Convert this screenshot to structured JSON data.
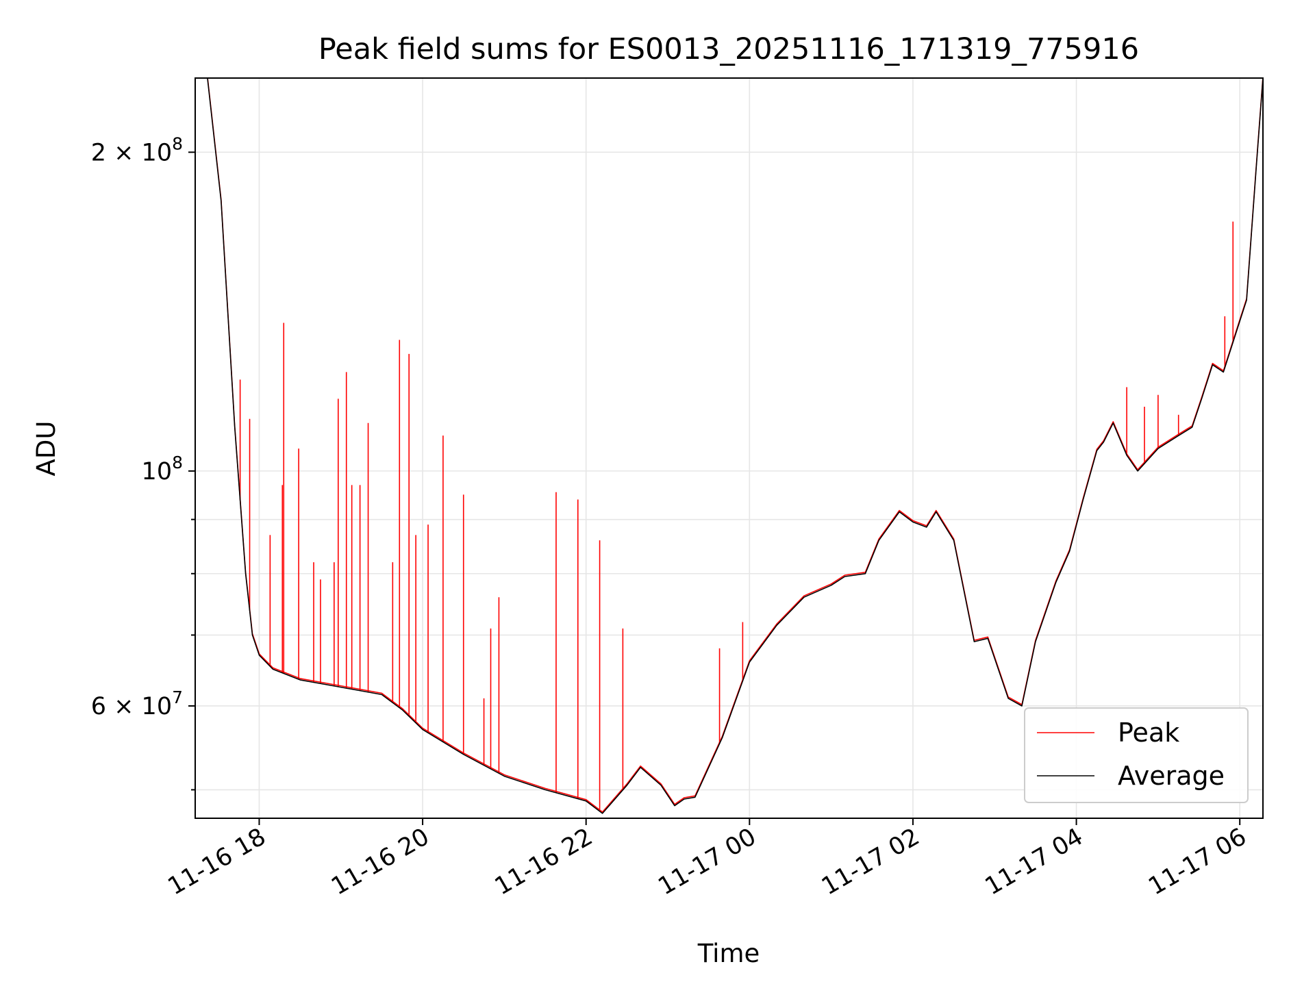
{
  "chart_data": {
    "type": "line",
    "title": "Peak field sums for ES0013_20251116_171319_775916",
    "xlabel": "Time",
    "ylabel": "ADU",
    "yscale": "log",
    "grid": true,
    "ylim": [
      47000000,
      235000000
    ],
    "xlim": [
      "2025-11-16 17:13",
      "2025-11-17 06:17"
    ],
    "x_ticks": [
      {
        "value": "2025-11-16 18:00",
        "label": "11-16 18"
      },
      {
        "value": "2025-11-16 20:00",
        "label": "11-16 20"
      },
      {
        "value": "2025-11-16 22:00",
        "label": "11-16 22"
      },
      {
        "value": "2025-11-17 00:00",
        "label": "11-17 00"
      },
      {
        "value": "2025-11-17 02:00",
        "label": "11-17 02"
      },
      {
        "value": "2025-11-17 04:00",
        "label": "11-17 04"
      },
      {
        "value": "2025-11-17 06:00",
        "label": "11-17 06"
      }
    ],
    "y_ticks": [
      {
        "value": 200000000,
        "base": "2 × 10",
        "exp": "8"
      },
      {
        "value": 100000000,
        "base": "10",
        "exp": "8"
      },
      {
        "value": 60000000,
        "base": "6 × 10",
        "exp": "7"
      }
    ],
    "y_minor_ticks": [
      50000000,
      70000000,
      80000000,
      90000000
    ],
    "legend": {
      "position": "lower right"
    },
    "series": [
      {
        "name": "Average",
        "color": "#000000",
        "x": [
          "2025-11-16 17:13",
          "2025-11-16 17:22",
          "2025-11-16 17:32",
          "2025-11-16 17:42",
          "2025-11-16 17:50",
          "2025-11-16 17:55",
          "2025-11-16 18:00",
          "2025-11-16 18:10",
          "2025-11-16 18:30",
          "2025-11-16 19:00",
          "2025-11-16 19:30",
          "2025-11-16 19:45",
          "2025-11-16 20:00",
          "2025-11-16 20:30",
          "2025-11-16 21:00",
          "2025-11-16 21:30",
          "2025-11-16 22:00",
          "2025-11-16 22:12",
          "2025-11-16 22:30",
          "2025-11-16 22:40",
          "2025-11-16 22:55",
          "2025-11-16 23:05",
          "2025-11-16 23:12",
          "2025-11-16 23:20",
          "2025-11-16 23:40",
          "2025-11-17 00:00",
          "2025-11-17 00:20",
          "2025-11-17 00:40",
          "2025-11-17 01:00",
          "2025-11-17 01:10",
          "2025-11-17 01:25",
          "2025-11-17 01:35",
          "2025-11-17 01:50",
          "2025-11-17 02:00",
          "2025-11-17 02:10",
          "2025-11-17 02:17",
          "2025-11-17 02:30",
          "2025-11-17 02:45",
          "2025-11-17 02:55",
          "2025-11-17 03:10",
          "2025-11-17 03:20",
          "2025-11-17 03:30",
          "2025-11-17 03:45",
          "2025-11-17 03:55",
          "2025-11-17 04:05",
          "2025-11-17 04:15",
          "2025-11-17 04:20",
          "2025-11-17 04:27",
          "2025-11-17 04:37",
          "2025-11-17 04:45",
          "2025-11-17 05:00",
          "2025-11-17 05:15",
          "2025-11-17 05:25",
          "2025-11-17 05:32",
          "2025-11-17 05:40",
          "2025-11-17 05:48",
          "2025-11-17 05:58",
          "2025-11-17 06:05",
          "2025-11-17 06:12",
          "2025-11-17 06:17"
        ],
        "y": [
          235000000,
          235000000,
          180000000,
          110000000,
          80000000,
          70000000,
          67000000,
          65000000,
          63500000,
          62500000,
          61500000,
          59500000,
          57000000,
          54000000,
          51500000,
          50000000,
          48800000,
          47500000,
          50500000,
          52500000,
          50500000,
          48300000,
          49000000,
          49200000,
          56000000,
          66000000,
          71500000,
          76000000,
          78000000,
          79500000,
          80000000,
          86000000,
          91500000,
          89500000,
          88500000,
          91500000,
          86000000,
          69000000,
          69500000,
          61000000,
          60000000,
          69000000,
          78500000,
          84000000,
          94000000,
          104500000,
          106500000,
          111000000,
          103500000,
          100000000,
          105000000,
          108000000,
          110000000,
          117000000,
          126000000,
          124000000,
          136000000,
          145000000,
          193000000,
          235000000
        ]
      },
      {
        "name": "Peak",
        "color": "#ff0000",
        "spikes": [
          {
            "x": "2025-11-16 17:46",
            "y": 122000000
          },
          {
            "x": "2025-11-16 17:53",
            "y": 112000000
          },
          {
            "x": "2025-11-16 18:08",
            "y": 87000000
          },
          {
            "x": "2025-11-16 18:17",
            "y": 97000000
          },
          {
            "x": "2025-11-16 18:18",
            "y": 138000000
          },
          {
            "x": "2025-11-16 18:29",
            "y": 105000000
          },
          {
            "x": "2025-11-16 18:40",
            "y": 82000000
          },
          {
            "x": "2025-11-16 18:45",
            "y": 79000000
          },
          {
            "x": "2025-11-16 18:55",
            "y": 82000000
          },
          {
            "x": "2025-11-16 18:58",
            "y": 117000000
          },
          {
            "x": "2025-11-16 19:04",
            "y": 124000000
          },
          {
            "x": "2025-11-16 19:08",
            "y": 97000000
          },
          {
            "x": "2025-11-16 19:14",
            "y": 97000000
          },
          {
            "x": "2025-11-16 19:20",
            "y": 111000000
          },
          {
            "x": "2025-11-16 19:38",
            "y": 82000000
          },
          {
            "x": "2025-11-16 19:43",
            "y": 133000000
          },
          {
            "x": "2025-11-16 19:50",
            "y": 129000000
          },
          {
            "x": "2025-11-16 19:55",
            "y": 87000000
          },
          {
            "x": "2025-11-16 20:04",
            "y": 89000000
          },
          {
            "x": "2025-11-16 20:15",
            "y": 108000000
          },
          {
            "x": "2025-11-16 20:30",
            "y": 95000000
          },
          {
            "x": "2025-11-16 20:45",
            "y": 61000000
          },
          {
            "x": "2025-11-16 20:50",
            "y": 71000000
          },
          {
            "x": "2025-11-16 20:56",
            "y": 76000000
          },
          {
            "x": "2025-11-16 21:38",
            "y": 95500000
          },
          {
            "x": "2025-11-16 21:54",
            "y": 94000000
          },
          {
            "x": "2025-11-16 22:10",
            "y": 86000000
          },
          {
            "x": "2025-11-16 22:27",
            "y": 71000000
          },
          {
            "x": "2025-11-16 23:38",
            "y": 68000000
          },
          {
            "x": "2025-11-16 23:55",
            "y": 72000000
          },
          {
            "x": "2025-11-17 04:37",
            "y": 120000000
          },
          {
            "x": "2025-11-17 04:50",
            "y": 115000000
          },
          {
            "x": "2025-11-17 05:00",
            "y": 118000000
          },
          {
            "x": "2025-11-17 05:15",
            "y": 113000000
          },
          {
            "x": "2025-11-17 05:49",
            "y": 140000000
          },
          {
            "x": "2025-11-17 05:55",
            "y": 172000000
          }
        ]
      }
    ]
  }
}
